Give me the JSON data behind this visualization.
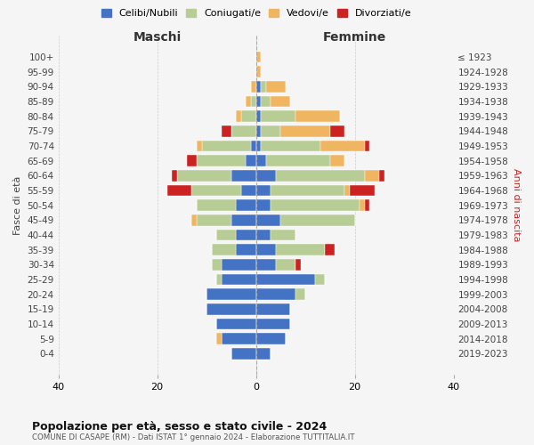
{
  "age_groups": [
    "100+",
    "95-99",
    "90-94",
    "85-89",
    "80-84",
    "75-79",
    "70-74",
    "65-69",
    "60-64",
    "55-59",
    "50-54",
    "45-49",
    "40-44",
    "35-39",
    "30-34",
    "25-29",
    "20-24",
    "15-19",
    "10-14",
    "5-9",
    "0-4"
  ],
  "birth_years": [
    "≤ 1923",
    "1924-1928",
    "1929-1933",
    "1934-1938",
    "1939-1943",
    "1944-1948",
    "1949-1953",
    "1954-1958",
    "1959-1963",
    "1964-1968",
    "1969-1973",
    "1974-1978",
    "1979-1983",
    "1984-1988",
    "1989-1993",
    "1994-1998",
    "1999-2003",
    "2004-2008",
    "2009-2013",
    "2014-2018",
    "2019-2023"
  ],
  "colors": {
    "celibi": "#4472c4",
    "coniugati": "#b8cc96",
    "vedovi": "#f0b560",
    "divorziati": "#cc2222"
  },
  "males": {
    "celibi": [
      0,
      0,
      0,
      0,
      0,
      0,
      1,
      2,
      5,
      3,
      4,
      5,
      4,
      4,
      7,
      7,
      10,
      10,
      8,
      7,
      5
    ],
    "coniugati": [
      0,
      0,
      0,
      1,
      3,
      5,
      10,
      10,
      11,
      10,
      8,
      7,
      4,
      5,
      2,
      1,
      0,
      0,
      0,
      0,
      0
    ],
    "vedovi": [
      0,
      0,
      1,
      1,
      1,
      0,
      1,
      0,
      0,
      0,
      0,
      1,
      0,
      0,
      0,
      0,
      0,
      0,
      0,
      1,
      0
    ],
    "divorziati": [
      0,
      0,
      0,
      0,
      0,
      2,
      0,
      2,
      1,
      5,
      0,
      0,
      0,
      0,
      0,
      0,
      0,
      0,
      0,
      0,
      0
    ]
  },
  "females": {
    "celibi": [
      0,
      0,
      1,
      1,
      1,
      1,
      1,
      2,
      4,
      3,
      3,
      5,
      3,
      4,
      4,
      12,
      8,
      7,
      7,
      6,
      3
    ],
    "coniugati": [
      0,
      0,
      1,
      2,
      7,
      4,
      12,
      13,
      18,
      15,
      18,
      15,
      5,
      10,
      4,
      2,
      2,
      0,
      0,
      0,
      0
    ],
    "vedovi": [
      1,
      1,
      4,
      4,
      9,
      10,
      9,
      3,
      3,
      1,
      1,
      0,
      0,
      0,
      0,
      0,
      0,
      0,
      0,
      0,
      0
    ],
    "divorziati": [
      0,
      0,
      0,
      0,
      0,
      3,
      1,
      0,
      1,
      5,
      1,
      0,
      0,
      2,
      1,
      0,
      0,
      0,
      0,
      0,
      0
    ]
  },
  "title": "Popolazione per età, sesso e stato civile - 2024",
  "subtitle": "COMUNE DI CASAPE (RM) - Dati ISTAT 1° gennaio 2024 - Elaborazione TUTTITALIA.IT",
  "xlabel_left": "Maschi",
  "xlabel_right": "Femmine",
  "ylabel_left": "Fasce di età",
  "ylabel_right": "Anni di nascita",
  "xlim": 40,
  "legend_labels": [
    "Celibi/Nubili",
    "Coniugati/e",
    "Vedovi/e",
    "Divorziati/e"
  ],
  "bg_color": "#f5f5f5",
  "grid_color": "#cccccc"
}
